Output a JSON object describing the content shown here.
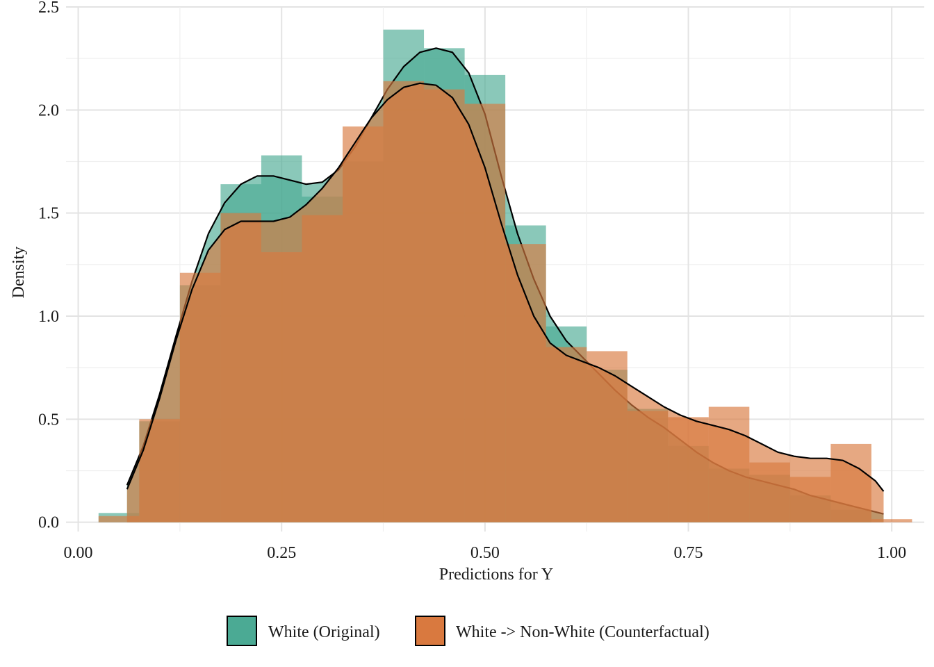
{
  "chart_data": {
    "type": "histogram+density",
    "xlabel": "Predictions for Y",
    "ylabel": "Density",
    "xlim": [
      -0.015,
      1.04
    ],
    "ylim": [
      -0.045,
      2.5
    ],
    "x_ticks": [
      0.0,
      0.25,
      0.5,
      0.75,
      1.0
    ],
    "x_tick_labels": [
      "0.00",
      "0.25",
      "0.50",
      "0.75",
      "1.00"
    ],
    "y_ticks": [
      0.0,
      0.5,
      1.0,
      1.5,
      2.0,
      2.5
    ],
    "y_tick_labels": [
      "0.0",
      "0.5",
      "1.0",
      "1.5",
      "2.0",
      "2.5"
    ],
    "grid": true,
    "legend_position": "bottom",
    "bin_width": 0.05,
    "bin_centers": [
      0.05,
      0.1,
      0.15,
      0.2,
      0.25,
      0.3,
      0.35,
      0.4,
      0.45,
      0.5,
      0.55,
      0.6,
      0.65,
      0.7,
      0.75,
      0.8,
      0.85,
      0.9,
      0.95,
      1.0
    ],
    "series": [
      {
        "name": "White (Original)",
        "color": "#1B9E77",
        "fill_color": "#4BAA94",
        "hist_values": [
          0.045,
          0.49,
          1.15,
          1.64,
          1.78,
          1.58,
          1.75,
          2.39,
          2.3,
          2.17,
          1.44,
          0.95,
          0.74,
          0.55,
          0.37,
          0.26,
          0.23,
          0.13,
          0.06,
          0.0
        ],
        "density_x": [
          0.06,
          0.08,
          0.1,
          0.12,
          0.14,
          0.16,
          0.18,
          0.2,
          0.22,
          0.24,
          0.26,
          0.28,
          0.3,
          0.32,
          0.34,
          0.36,
          0.38,
          0.4,
          0.42,
          0.44,
          0.46,
          0.48,
          0.5,
          0.52,
          0.54,
          0.56,
          0.58,
          0.6,
          0.62,
          0.64,
          0.66,
          0.68,
          0.7,
          0.72,
          0.74,
          0.76,
          0.78,
          0.8,
          0.82,
          0.84,
          0.86,
          0.88,
          0.9,
          0.92,
          0.94,
          0.96,
          0.98,
          0.99
        ],
        "density_y": [
          0.18,
          0.37,
          0.62,
          0.9,
          1.17,
          1.4,
          1.55,
          1.64,
          1.68,
          1.68,
          1.66,
          1.64,
          1.65,
          1.71,
          1.82,
          1.96,
          2.1,
          2.21,
          2.28,
          2.3,
          2.28,
          2.18,
          1.98,
          1.68,
          1.4,
          1.18,
          1.0,
          0.88,
          0.8,
          0.72,
          0.64,
          0.57,
          0.51,
          0.46,
          0.4,
          0.34,
          0.29,
          0.25,
          0.22,
          0.2,
          0.18,
          0.16,
          0.13,
          0.11,
          0.09,
          0.07,
          0.05,
          0.04
        ]
      },
      {
        "name": "White -> Non-White (Counterfactual)",
        "color": "#D95F02",
        "fill_color": "#D9793F",
        "hist_values": [
          0.03,
          0.5,
          1.21,
          1.5,
          1.31,
          1.49,
          1.92,
          2.14,
          2.1,
          2.03,
          1.35,
          0.85,
          0.83,
          0.54,
          0.51,
          0.56,
          0.29,
          0.22,
          0.38,
          0.015
        ],
        "density_x": [
          0.06,
          0.08,
          0.1,
          0.12,
          0.14,
          0.16,
          0.18,
          0.2,
          0.22,
          0.24,
          0.26,
          0.28,
          0.3,
          0.32,
          0.34,
          0.36,
          0.38,
          0.4,
          0.42,
          0.44,
          0.46,
          0.48,
          0.5,
          0.52,
          0.54,
          0.56,
          0.58,
          0.6,
          0.62,
          0.64,
          0.66,
          0.68,
          0.7,
          0.72,
          0.74,
          0.76,
          0.78,
          0.8,
          0.82,
          0.84,
          0.86,
          0.88,
          0.9,
          0.92,
          0.94,
          0.96,
          0.98,
          0.99
        ],
        "density_y": [
          0.16,
          0.35,
          0.6,
          0.88,
          1.13,
          1.32,
          1.42,
          1.46,
          1.46,
          1.46,
          1.48,
          1.54,
          1.62,
          1.72,
          1.84,
          1.96,
          2.05,
          2.11,
          2.13,
          2.12,
          2.06,
          1.93,
          1.72,
          1.45,
          1.2,
          1.0,
          0.87,
          0.81,
          0.78,
          0.75,
          0.71,
          0.66,
          0.61,
          0.56,
          0.52,
          0.49,
          0.47,
          0.45,
          0.42,
          0.38,
          0.34,
          0.32,
          0.31,
          0.31,
          0.3,
          0.26,
          0.2,
          0.15
        ]
      }
    ]
  }
}
